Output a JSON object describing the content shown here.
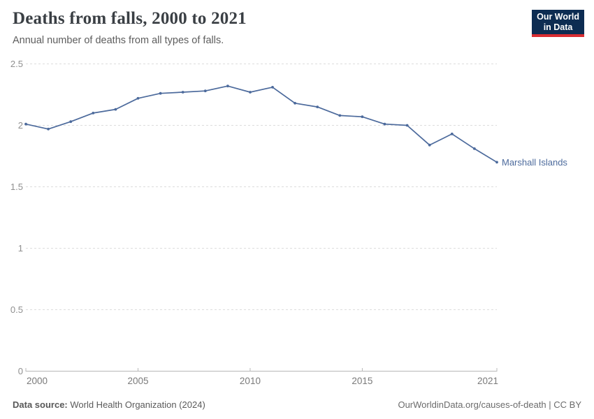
{
  "header": {
    "title": "Deaths from falls, 2000 to 2021",
    "subtitle": "Annual number of deaths from all types of falls.",
    "logo": {
      "line1": "Our World",
      "line2": "in Data",
      "bg_color": "#0d2c52",
      "accent_color": "#d92d32"
    }
  },
  "chart_data": {
    "type": "line",
    "title": "Deaths from falls, 2000 to 2021",
    "subtitle": "Annual number of deaths from all types of falls.",
    "xlabel": "",
    "ylabel": "",
    "x": [
      2000,
      2001,
      2002,
      2003,
      2004,
      2005,
      2006,
      2007,
      2008,
      2009,
      2010,
      2011,
      2012,
      2013,
      2014,
      2015,
      2016,
      2017,
      2018,
      2019,
      2020,
      2021
    ],
    "series": [
      {
        "name": "Marshall Islands",
        "color": "#4c6a9c",
        "values": [
          2.01,
          1.97,
          2.03,
          2.1,
          2.13,
          2.22,
          2.26,
          2.27,
          2.28,
          2.32,
          2.27,
          2.31,
          2.18,
          2.15,
          2.08,
          2.07,
          2.01,
          2.0,
          1.84,
          1.93,
          1.81,
          1.7
        ]
      }
    ],
    "ylim": [
      0,
      2.5
    ],
    "yticks": [
      0,
      0.5,
      1,
      1.5,
      2,
      2.5
    ],
    "xticks": [
      2000,
      2005,
      2010,
      2015,
      2021
    ],
    "grid": "horizontal-dashed",
    "legend_position": "end-of-line-label",
    "colors": {
      "gridline": "#dcdcdc",
      "axis": "#b8b8b8",
      "y_tick_text": "#8f8f8f",
      "x_tick_text": "#7a7a7a"
    }
  },
  "footer": {
    "source_label": "Data source:",
    "source_value": " World Health Organization (2024)",
    "link": "OurWorldinData.org/causes-of-death | CC BY"
  }
}
